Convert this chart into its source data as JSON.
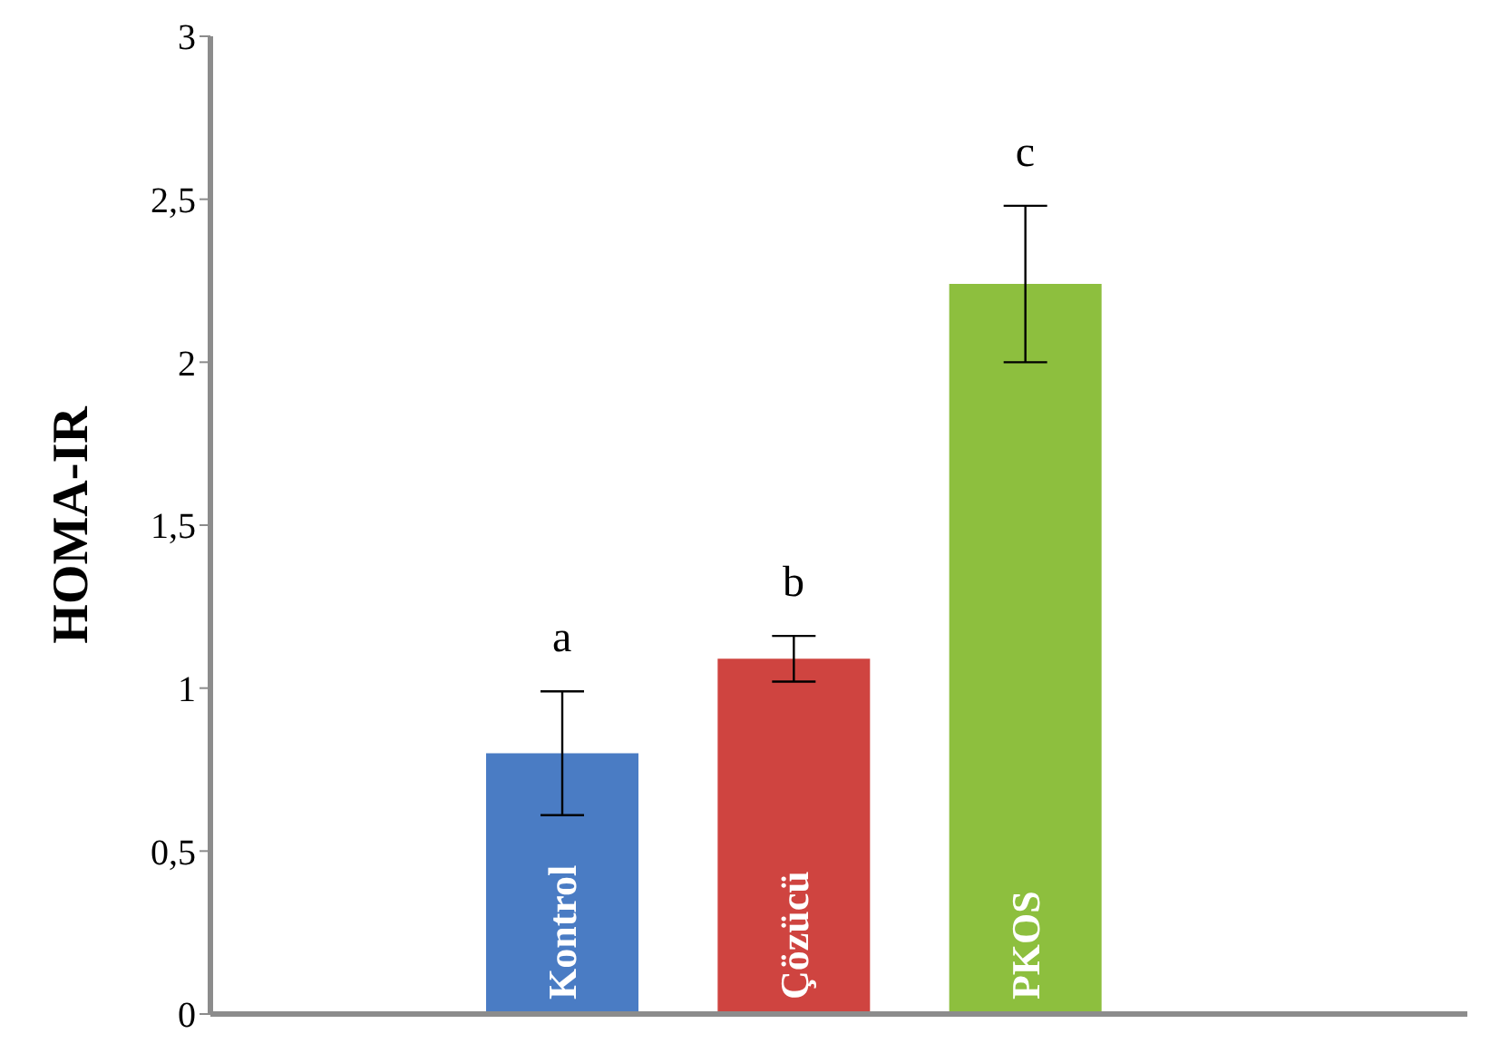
{
  "chart_data": {
    "type": "bar",
    "ylabel": "HOMA-IR",
    "categories": [
      "Kontrol",
      "Çözücü",
      "PKOS"
    ],
    "values": [
      0.8,
      1.09,
      2.24
    ],
    "colors": [
      "#4a7cc4",
      "#cf4440",
      "#8dbf3e"
    ],
    "errors": [
      0.19,
      0.07,
      0.24
    ],
    "ylim": [
      0,
      3
    ],
    "yticks": [
      0,
      {
        "value": 0.5,
        "label": "0,5"
      },
      1,
      {
        "value": 1.5,
        "label": "1,5"
      },
      2,
      {
        "value": 2.5,
        "label": "2,5"
      },
      3
    ],
    "annotations": [
      "a",
      "b",
      "c"
    ]
  }
}
